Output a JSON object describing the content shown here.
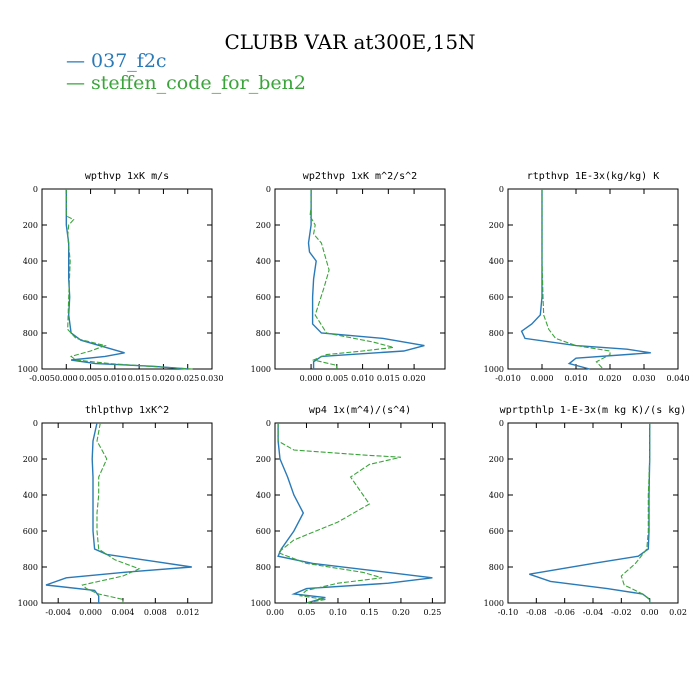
{
  "title": "CLUBB VAR at300E,15N",
  "colors": {
    "series1": "#2a7ab8",
    "series2": "#3aa43a"
  },
  "legend": [
    {
      "label": "037_f2c",
      "color": "#2a7ab8",
      "line": "solid"
    },
    {
      "label": "steffen_code_for_ben2",
      "color": "#3aa43a",
      "line": "dashed"
    }
  ],
  "chart_data": [
    {
      "type": "line",
      "title": "wpthvp  1xK m/s",
      "xlim": [
        -0.005,
        0.03
      ],
      "ylim": [
        0,
        1000
      ],
      "y_inverted": true,
      "xticks": [
        "-0.005",
        "0.000",
        "0.005",
        "0.010",
        "0.015",
        "0.020",
        "0.025",
        "0.030"
      ],
      "yticks": [
        "0",
        "200",
        "400",
        "600",
        "800",
        "1000"
      ],
      "series": [
        {
          "name": "037_f2c",
          "points": [
            [
              0,
              0
            ],
            [
              0,
              100
            ],
            [
              0,
              200
            ],
            [
              0.0005,
              300
            ],
            [
              0.0005,
              500
            ],
            [
              0.0007,
              600
            ],
            [
              0.0005,
              700
            ],
            [
              0.001,
              800
            ],
            [
              0.003,
              840
            ],
            [
              0.012,
              910
            ],
            [
              0.008,
              930
            ],
            [
              0.001,
              950
            ],
            [
              0.006,
              970
            ],
            [
              0.018,
              985
            ],
            [
              0.025,
              1000
            ]
          ]
        },
        {
          "name": "steffen_code_for_ben2",
          "points": [
            [
              0,
              0
            ],
            [
              0,
              100
            ],
            [
              0,
              150
            ],
            [
              0.0015,
              170
            ],
            [
              0.0005,
              200
            ],
            [
              0.0003,
              260
            ],
            [
              0.0008,
              400
            ],
            [
              0.0005,
              600
            ],
            [
              0.0003,
              780
            ],
            [
              0.002,
              830
            ],
            [
              0.008,
              870
            ],
            [
              0.005,
              900
            ],
            [
              0.001,
              930
            ],
            [
              0.002,
              950
            ],
            [
              0.009,
              970
            ],
            [
              0.017,
              985
            ],
            [
              0.026,
              1000
            ]
          ]
        }
      ]
    },
    {
      "type": "line",
      "title": "wp2thvp  1xK m^2/s^2",
      "xlim": [
        -0.007,
        0.026
      ],
      "ylim": [
        0,
        1000
      ],
      "y_inverted": true,
      "xticks": [
        "0.000",
        "0.005",
        "0.010",
        "0.015",
        "0.020"
      ],
      "yticks": [
        "0",
        "200",
        "400",
        "600",
        "800",
        "1000"
      ],
      "series": [
        {
          "name": "037_f2c",
          "points": [
            [
              0,
              0
            ],
            [
              0,
              100
            ],
            [
              0,
              200
            ],
            [
              -0.0005,
              300
            ],
            [
              -0.0003,
              350
            ],
            [
              0.001,
              400
            ],
            [
              0.0005,
              500
            ],
            [
              0.0003,
              600
            ],
            [
              0.0003,
              750
            ],
            [
              0.002,
              800
            ],
            [
              0.014,
              830
            ],
            [
              0.022,
              870
            ],
            [
              0.018,
              900
            ],
            [
              0.002,
              930
            ],
            [
              0.0005,
              960
            ],
            [
              0.0005,
              1000
            ]
          ]
        },
        {
          "name": "steffen_code_for_ben2",
          "points": [
            [
              0,
              0
            ],
            [
              0,
              100
            ],
            [
              -0.0002,
              150
            ],
            [
              0.0008,
              200
            ],
            [
              0.0005,
              250
            ],
            [
              0.002,
              300
            ],
            [
              0.003,
              400
            ],
            [
              0.0035,
              450
            ],
            [
              0.0025,
              550
            ],
            [
              0.0008,
              700
            ],
            [
              0.003,
              800
            ],
            [
              0.012,
              850
            ],
            [
              0.016,
              880
            ],
            [
              0.01,
              900
            ],
            [
              0.003,
              920
            ],
            [
              0.0005,
              950
            ],
            [
              0.005,
              980
            ],
            [
              0.005,
              1000
            ]
          ]
        }
      ]
    },
    {
      "type": "line",
      "title": "rtpthvp  1E-3x(kg/kg) K",
      "xlim": [
        -0.01,
        0.04
      ],
      "ylim": [
        0,
        1000
      ],
      "y_inverted": true,
      "xticks": [
        "-0.010",
        "0.000",
        "0.010",
        "0.020",
        "0.030",
        "0.040"
      ],
      "yticks": [
        "0",
        "200",
        "400",
        "600",
        "800",
        "1000"
      ],
      "series": [
        {
          "name": "037_f2c",
          "points": [
            [
              0,
              0
            ],
            [
              0,
              200
            ],
            [
              0,
              400
            ],
            [
              0,
              600
            ],
            [
              -0.0005,
              700
            ],
            [
              -0.003,
              750
            ],
            [
              -0.006,
              790
            ],
            [
              -0.005,
              830
            ],
            [
              0.01,
              870
            ],
            [
              0.025,
              890
            ],
            [
              0.032,
              910
            ],
            [
              0.01,
              940
            ],
            [
              0.008,
              970
            ],
            [
              0.014,
              1000
            ]
          ]
        },
        {
          "name": "steffen_code_for_ben2",
          "points": [
            [
              0,
              0
            ],
            [
              0,
              200
            ],
            [
              0,
              400
            ],
            [
              0.0003,
              600
            ],
            [
              0.0005,
              700
            ],
            [
              0.002,
              780
            ],
            [
              0.004,
              830
            ],
            [
              0.01,
              870
            ],
            [
              0.02,
              900
            ],
            [
              0.02,
              920
            ],
            [
              0.016,
              960
            ],
            [
              0.018,
              1000
            ]
          ]
        }
      ]
    },
    {
      "type": "line",
      "title": "thlpthvp  1xK^2",
      "xlim": [
        -0.006,
        0.015
      ],
      "ylim": [
        0,
        1000
      ],
      "y_inverted": true,
      "xticks": [
        "-0.004",
        "0.000",
        "0.004",
        "0.008",
        "0.012"
      ],
      "yticks": [
        "0",
        "200",
        "400",
        "600",
        "800",
        "1000"
      ],
      "series": [
        {
          "name": "037_f2c",
          "points": [
            [
              0.0008,
              0
            ],
            [
              0.0003,
              100
            ],
            [
              0.0002,
              200
            ],
            [
              0.0003,
              300
            ],
            [
              0.0003,
              400
            ],
            [
              0.0003,
              500
            ],
            [
              0.0003,
              600
            ],
            [
              0.0005,
              700
            ],
            [
              0.002,
              730
            ],
            [
              0.008,
              770
            ],
            [
              0.0125,
              800
            ],
            [
              0.004,
              830
            ],
            [
              -0.003,
              860
            ],
            [
              -0.0055,
              900
            ],
            [
              0.0005,
              930
            ],
            [
              0.001,
              960
            ],
            [
              0.001,
              1000
            ]
          ]
        },
        {
          "name": "steffen_code_for_ben2",
          "points": [
            [
              0.0012,
              0
            ],
            [
              0.0008,
              100
            ],
            [
              0.002,
              200
            ],
            [
              0.001,
              300
            ],
            [
              0.001,
              400
            ],
            [
              0.0008,
              500
            ],
            [
              0.0008,
              600
            ],
            [
              0.001,
              700
            ],
            [
              0.003,
              760
            ],
            [
              0.006,
              810
            ],
            [
              0.004,
              850
            ],
            [
              0.001,
              880
            ],
            [
              -0.001,
              900
            ],
            [
              -0.0005,
              920
            ],
            [
              0.001,
              950
            ],
            [
              0.004,
              980
            ],
            [
              0.004,
              1000
            ]
          ]
        }
      ]
    },
    {
      "type": "line",
      "title": "wp4  1x(m^4)/(s^4)",
      "xlim": [
        0,
        0.27
      ],
      "ylim": [
        0,
        1000
      ],
      "y_inverted": true,
      "xticks": [
        "0.00",
        "0.05",
        "0.10",
        "0.15",
        "0.20",
        "0.25"
      ],
      "yticks": [
        "0",
        "200",
        "400",
        "600",
        "800",
        "1000"
      ],
      "series": [
        {
          "name": "037_f2c",
          "points": [
            [
              0.005,
              0
            ],
            [
              0.005,
              100
            ],
            [
              0.008,
              200
            ],
            [
              0.02,
              300
            ],
            [
              0.03,
              400
            ],
            [
              0.045,
              500
            ],
            [
              0.03,
              600
            ],
            [
              0.01,
              700
            ],
            [
              0.005,
              740
            ],
            [
              0.06,
              780
            ],
            [
              0.18,
              830
            ],
            [
              0.25,
              860
            ],
            [
              0.18,
              890
            ],
            [
              0.05,
              920
            ],
            [
              0.03,
              950
            ],
            [
              0.08,
              970
            ],
            [
              0.05,
              1000
            ]
          ]
        },
        {
          "name": "steffen_code_for_ben2",
          "points": [
            [
              0.005,
              0
            ],
            [
              0.005,
              100
            ],
            [
              0.03,
              150
            ],
            [
              0.15,
              180
            ],
            [
              0.2,
              190
            ],
            [
              0.15,
              230
            ],
            [
              0.12,
              300
            ],
            [
              0.14,
              400
            ],
            [
              0.15,
              450
            ],
            [
              0.1,
              550
            ],
            [
              0.03,
              650
            ],
            [
              0.005,
              720
            ],
            [
              0.05,
              780
            ],
            [
              0.14,
              830
            ],
            [
              0.17,
              860
            ],
            [
              0.1,
              890
            ],
            [
              0.05,
              930
            ],
            [
              0.04,
              960
            ],
            [
              0.08,
              980
            ],
            [
              0.05,
              1000
            ]
          ]
        }
      ]
    },
    {
      "type": "line",
      "title": "wprtpthlp  1-E-3x(m kg K)/(s kg)",
      "xlim": [
        -0.1,
        0.02
      ],
      "ylim": [
        0,
        1000
      ],
      "y_inverted": true,
      "xticks": [
        "-0.10",
        "-0.08",
        "-0.06",
        "-0.04",
        "-0.02",
        "0.00",
        "0.02"
      ],
      "yticks": [
        "0",
        "200",
        "400",
        "600",
        "800",
        "1000"
      ],
      "series": [
        {
          "name": "037_f2c",
          "points": [
            [
              0,
              0
            ],
            [
              0,
              200
            ],
            [
              -0.0005,
              400
            ],
            [
              -0.0005,
              600
            ],
            [
              -0.001,
              700
            ],
            [
              -0.008,
              740
            ],
            [
              -0.04,
              780
            ],
            [
              -0.085,
              840
            ],
            [
              -0.07,
              880
            ],
            [
              -0.03,
              920
            ],
            [
              -0.005,
              950
            ],
            [
              0,
              980
            ],
            [
              0,
              1000
            ]
          ]
        },
        {
          "name": "steffen_code_for_ben2",
          "points": [
            [
              0,
              0
            ],
            [
              0,
              200
            ],
            [
              -0.001,
              400
            ],
            [
              -0.001,
              600
            ],
            [
              -0.002,
              700
            ],
            [
              -0.01,
              780
            ],
            [
              -0.02,
              850
            ],
            [
              -0.018,
              900
            ],
            [
              -0.005,
              950
            ],
            [
              0,
              980
            ],
            [
              0,
              1000
            ]
          ]
        }
      ]
    }
  ]
}
